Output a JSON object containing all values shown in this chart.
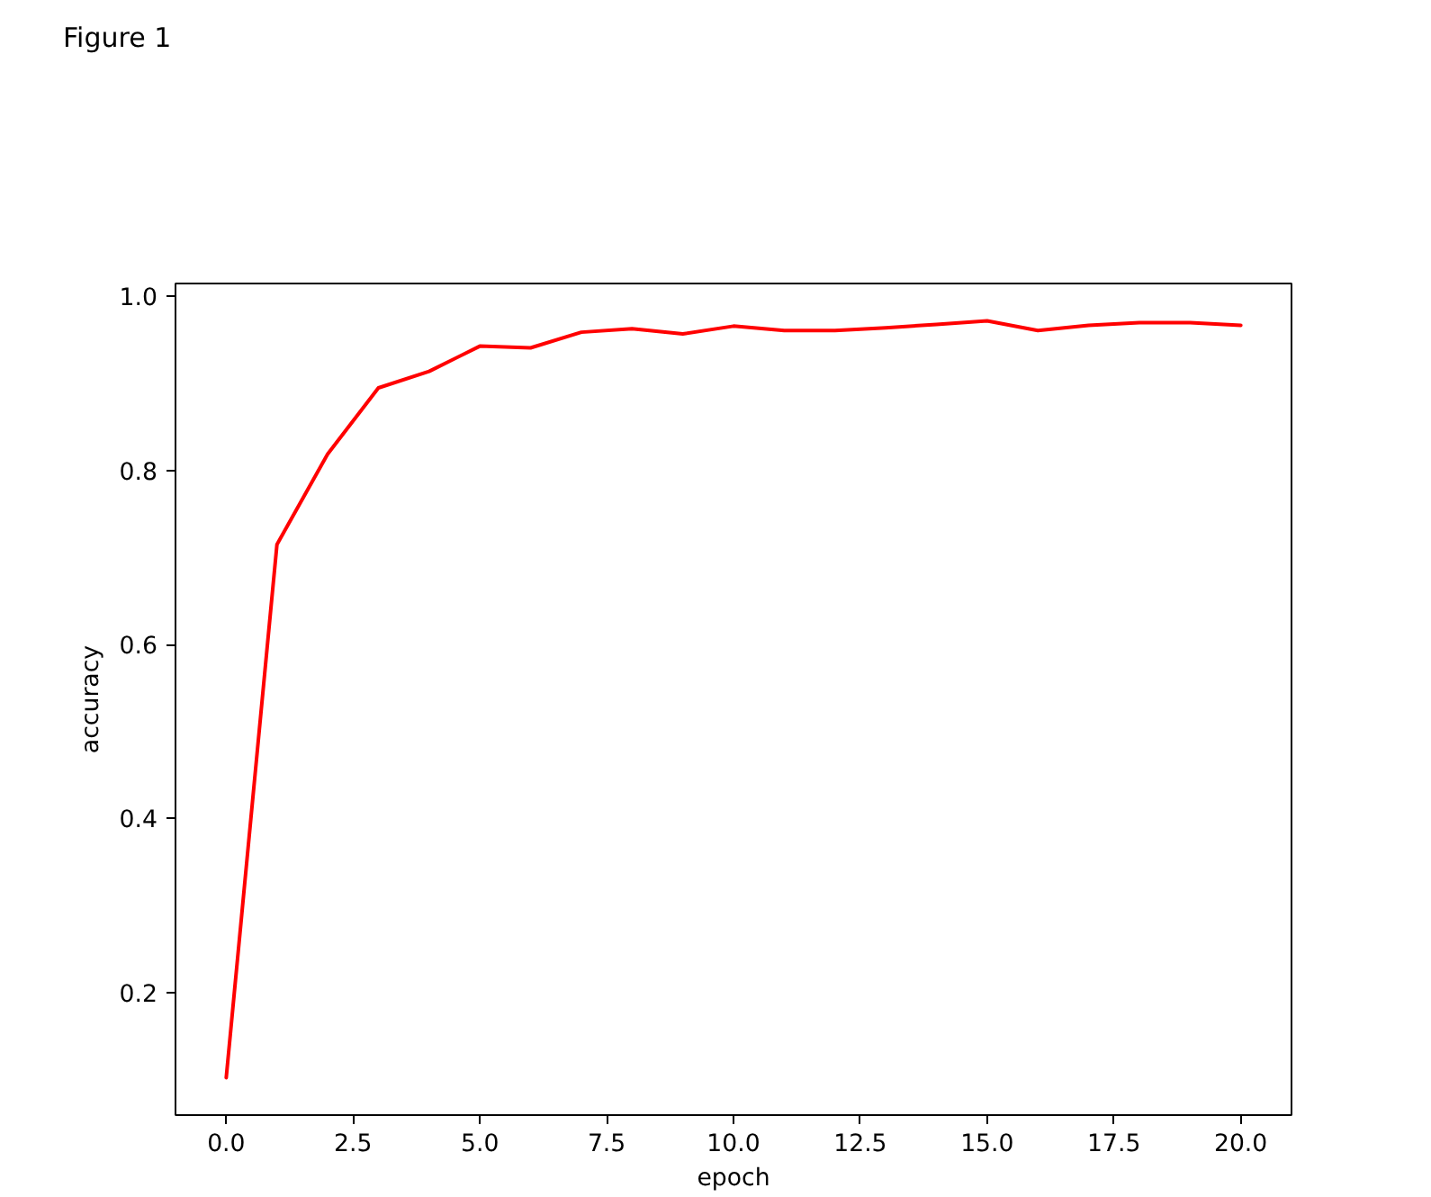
{
  "chart_data": {
    "type": "line",
    "xlabel": "epoch",
    "ylabel": "accuracy",
    "annotations": [
      "Figure 1"
    ],
    "x": [
      0,
      1,
      2,
      3,
      4,
      5,
      6,
      7,
      8,
      9,
      10,
      11,
      12,
      13,
      14,
      15,
      16,
      17,
      18,
      19,
      20
    ],
    "series": [
      {
        "color": "#ff0000",
        "values": [
          0.102,
          0.715,
          0.819,
          0.895,
          0.914,
          0.943,
          0.941,
          0.959,
          0.963,
          0.957,
          0.966,
          0.961,
          0.961,
          0.964,
          0.968,
          0.972,
          0.961,
          0.967,
          0.97,
          0.97,
          0.967
        ]
      }
    ],
    "xlim": [
      -1,
      21
    ],
    "ylim": [
      0.059,
      1.015
    ],
    "xticks": [
      {
        "value": 0,
        "label": "0.0"
      },
      2.5,
      {
        "value": 5,
        "label": "5.0"
      },
      7.5,
      {
        "value": 10,
        "label": "10.0"
      },
      12.5,
      {
        "value": 15,
        "label": "15.0"
      },
      17.5,
      {
        "value": 20,
        "label": "20.0"
      }
    ],
    "yticks": [
      0.2,
      0.4,
      0.6,
      0.8,
      {
        "value": 1,
        "label": "1.0"
      }
    ]
  }
}
